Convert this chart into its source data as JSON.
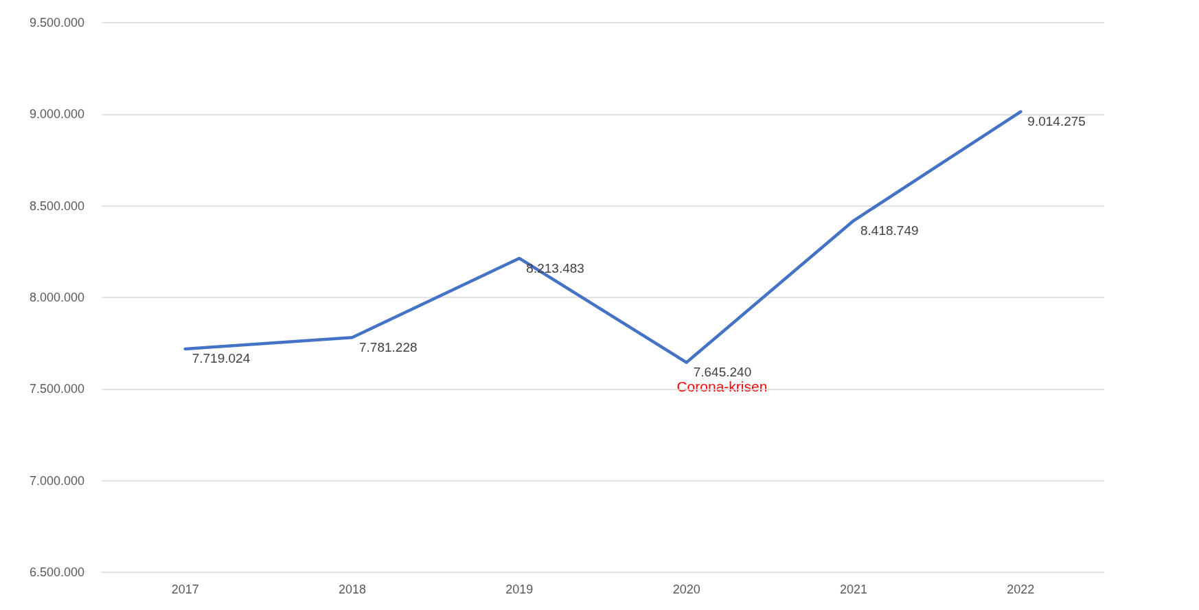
{
  "chart_data": {
    "type": "line",
    "categories": [
      "2017",
      "2018",
      "2019",
      "2020",
      "2021",
      "2022"
    ],
    "series": [
      {
        "color": "#4472c4",
        "values": [
          7719024,
          7781228,
          8213483,
          7645240,
          8418749,
          9014275
        ],
        "value_labels": [
          "7.719.024",
          "7.781.228",
          "8.213.483",
          "7.645.240",
          "8.418.749",
          "9.014.275"
        ]
      }
    ],
    "ylim": [
      6500000,
      9500000
    ],
    "yticks": [
      {
        "value": 6500000,
        "label": "6.500.000"
      },
      {
        "value": 7000000,
        "label": "7.000.000"
      },
      {
        "value": 7500000,
        "label": "7.500.000"
      },
      {
        "value": 8000000,
        "label": "8.000.000"
      },
      {
        "value": 8500000,
        "label": "8.500.000"
      },
      {
        "value": 9000000,
        "label": "9.000.000"
      },
      {
        "value": 9500000,
        "label": "9.500.000"
      }
    ],
    "grid": "y",
    "marker": "none",
    "line_style": "solid",
    "annotations": [
      "Corona-krisen"
    ]
  }
}
